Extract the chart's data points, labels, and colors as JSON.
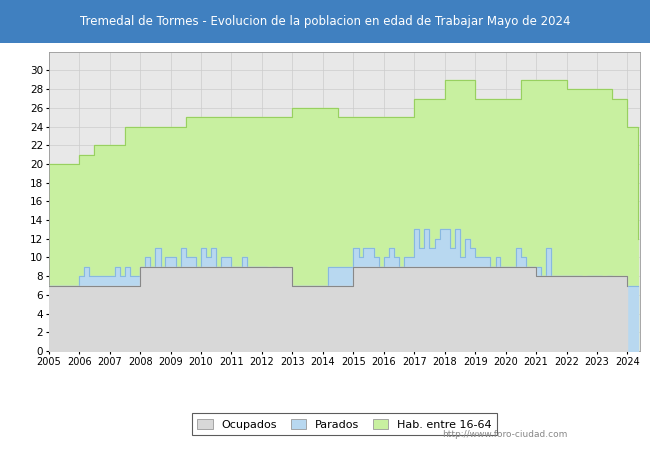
{
  "title": "Tremedal de Tormes - Evolucion de la poblacion en edad de Trabajar Mayo de 2024",
  "title_bg_color": "#4080c0",
  "title_text_color": "white",
  "ylim": [
    0,
    32
  ],
  "yticks": [
    0,
    2,
    4,
    6,
    8,
    10,
    12,
    14,
    16,
    18,
    20,
    22,
    24,
    26,
    28,
    30
  ],
  "watermark": "http://www.foro-ciudad.com",
  "legend_labels": [
    "Ocupados",
    "Parados",
    "Hab. entre 16-64"
  ],
  "ocupados_color": "#d8d8d8",
  "parados_color": "#b8d8f0",
  "hab_color": "#c8f0a0",
  "ocupados_line": "#888888",
  "parados_line": "#88b8e0",
  "hab_line": "#98d060",
  "years": [
    2005,
    2006,
    2007,
    2008,
    2009,
    2010,
    2011,
    2012,
    2013,
    2014,
    2015,
    2016,
    2017,
    2018,
    2019,
    2020,
    2021,
    2022,
    2023,
    2024
  ],
  "ocupados": [
    7,
    7,
    7,
    9,
    9,
    9,
    9,
    9,
    7,
    7,
    9,
    9,
    9,
    9,
    9,
    9,
    8,
    8,
    8,
    7
  ],
  "parados_data": [
    [
      2005.0,
      7
    ],
    [
      2006.0,
      7
    ],
    [
      2006.0,
      8
    ],
    [
      2006.17,
      9
    ],
    [
      2006.33,
      8
    ],
    [
      2006.5,
      8
    ],
    [
      2006.67,
      8
    ],
    [
      2006.83,
      8
    ],
    [
      2007.0,
      8
    ],
    [
      2007.17,
      9
    ],
    [
      2007.33,
      8
    ],
    [
      2007.5,
      9
    ],
    [
      2007.67,
      8
    ],
    [
      2007.83,
      8
    ],
    [
      2008.0,
      9
    ],
    [
      2008.17,
      10
    ],
    [
      2008.33,
      9
    ],
    [
      2008.5,
      11
    ],
    [
      2008.67,
      9
    ],
    [
      2008.83,
      10
    ],
    [
      2009.0,
      10
    ],
    [
      2009.17,
      9
    ],
    [
      2009.33,
      11
    ],
    [
      2009.5,
      10
    ],
    [
      2009.67,
      10
    ],
    [
      2009.83,
      9
    ],
    [
      2010.0,
      11
    ],
    [
      2010.17,
      10
    ],
    [
      2010.33,
      11
    ],
    [
      2010.5,
      9
    ],
    [
      2010.67,
      10
    ],
    [
      2010.83,
      10
    ],
    [
      2011.0,
      9
    ],
    [
      2011.17,
      9
    ],
    [
      2011.33,
      10
    ],
    [
      2011.5,
      9
    ],
    [
      2011.67,
      9
    ],
    [
      2011.83,
      9
    ],
    [
      2012.0,
      9
    ],
    [
      2012.17,
      8
    ],
    [
      2012.33,
      9
    ],
    [
      2012.5,
      7
    ],
    [
      2012.67,
      7
    ],
    [
      2012.83,
      7
    ],
    [
      2013.0,
      7
    ],
    [
      2013.17,
      7
    ],
    [
      2013.5,
      7
    ],
    [
      2013.83,
      7
    ],
    [
      2014.0,
      7
    ],
    [
      2014.17,
      9
    ],
    [
      2014.33,
      9
    ],
    [
      2014.5,
      9
    ],
    [
      2014.67,
      9
    ],
    [
      2014.83,
      9
    ],
    [
      2015.0,
      11
    ],
    [
      2015.17,
      10
    ],
    [
      2015.33,
      11
    ],
    [
      2015.5,
      11
    ],
    [
      2015.67,
      10
    ],
    [
      2015.83,
      9
    ],
    [
      2016.0,
      10
    ],
    [
      2016.17,
      11
    ],
    [
      2016.33,
      10
    ],
    [
      2016.5,
      9
    ],
    [
      2016.67,
      10
    ],
    [
      2016.83,
      10
    ],
    [
      2017.0,
      13
    ],
    [
      2017.17,
      11
    ],
    [
      2017.33,
      13
    ],
    [
      2017.5,
      11
    ],
    [
      2017.67,
      12
    ],
    [
      2017.83,
      13
    ],
    [
      2018.0,
      13
    ],
    [
      2018.17,
      11
    ],
    [
      2018.33,
      13
    ],
    [
      2018.5,
      10
    ],
    [
      2018.67,
      12
    ],
    [
      2018.83,
      11
    ],
    [
      2019.0,
      10
    ],
    [
      2019.17,
      10
    ],
    [
      2019.33,
      10
    ],
    [
      2019.5,
      9
    ],
    [
      2019.67,
      10
    ],
    [
      2019.83,
      9
    ],
    [
      2020.0,
      9
    ],
    [
      2020.17,
      9
    ],
    [
      2020.33,
      11
    ],
    [
      2020.5,
      10
    ],
    [
      2020.67,
      9
    ],
    [
      2020.83,
      9
    ],
    [
      2021.0,
      9
    ],
    [
      2021.17,
      8
    ],
    [
      2021.33,
      11
    ],
    [
      2021.5,
      8
    ],
    [
      2021.67,
      8
    ],
    [
      2021.83,
      8
    ],
    [
      2022.0,
      8
    ],
    [
      2022.17,
      8
    ],
    [
      2022.33,
      8
    ],
    [
      2022.5,
      7
    ],
    [
      2022.67,
      8
    ],
    [
      2022.83,
      8
    ],
    [
      2023.0,
      8
    ],
    [
      2023.17,
      7
    ],
    [
      2023.33,
      8
    ],
    [
      2023.5,
      7
    ],
    [
      2023.67,
      7
    ],
    [
      2023.83,
      7
    ],
    [
      2024.0,
      7
    ],
    [
      2024.33,
      7
    ]
  ],
  "hab_data": [
    [
      2005.0,
      20
    ],
    [
      2006.0,
      21
    ],
    [
      2006.5,
      22
    ],
    [
      2007.0,
      22
    ],
    [
      2007.5,
      24
    ],
    [
      2008.0,
      24
    ],
    [
      2009.0,
      24
    ],
    [
      2009.5,
      25
    ],
    [
      2010.0,
      25
    ],
    [
      2011.0,
      25
    ],
    [
      2012.0,
      25
    ],
    [
      2013.0,
      26
    ],
    [
      2014.0,
      26
    ],
    [
      2014.5,
      25
    ],
    [
      2015.0,
      25
    ],
    [
      2016.0,
      25
    ],
    [
      2017.0,
      27
    ],
    [
      2018.0,
      29
    ],
    [
      2019.0,
      27
    ],
    [
      2020.0,
      27
    ],
    [
      2020.5,
      29
    ],
    [
      2021.0,
      29
    ],
    [
      2022.0,
      28
    ],
    [
      2023.0,
      28
    ],
    [
      2023.5,
      27
    ],
    [
      2024.0,
      24
    ],
    [
      2024.33,
      12
    ]
  ],
  "grid_color": "#cccccc",
  "plot_bg_color": "#e8e8e8",
  "fig_bg_color": "#ffffff"
}
